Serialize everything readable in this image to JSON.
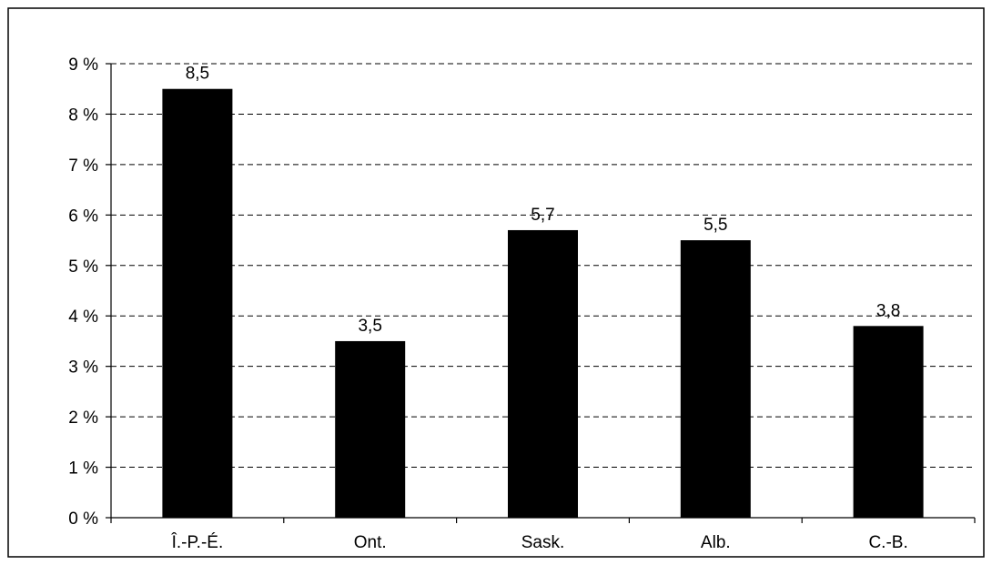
{
  "chart_data": {
    "type": "bar",
    "title": "",
    "xlabel": "",
    "ylabel": "",
    "categories": [
      "Î.-P.-É.",
      "Ont.",
      "Sask.",
      "Alb.",
      "C.-B."
    ],
    "values": [
      8.5,
      3.5,
      5.7,
      5.5,
      3.8
    ],
    "data_labels": [
      "8,5",
      "3,5",
      "5,7",
      "5,5",
      "3,8"
    ],
    "ylim": [
      0,
      9
    ],
    "yticks": [
      {
        "value": 0,
        "label": "0 %"
      },
      {
        "value": 1,
        "label": "1 %"
      },
      {
        "value": 2,
        "label": "2 %"
      },
      {
        "value": 3,
        "label": "3 %"
      },
      {
        "value": 4,
        "label": "4 %"
      },
      {
        "value": 5,
        "label": "5 %"
      },
      {
        "value": 6,
        "label": "6 %"
      },
      {
        "value": 7,
        "label": "7 %"
      },
      {
        "value": 8,
        "label": "8 %"
      },
      {
        "value": 9,
        "label": "9 %"
      }
    ],
    "grid": true,
    "grid_style": "dashed",
    "legend": "none",
    "bar_color": "#000000"
  }
}
